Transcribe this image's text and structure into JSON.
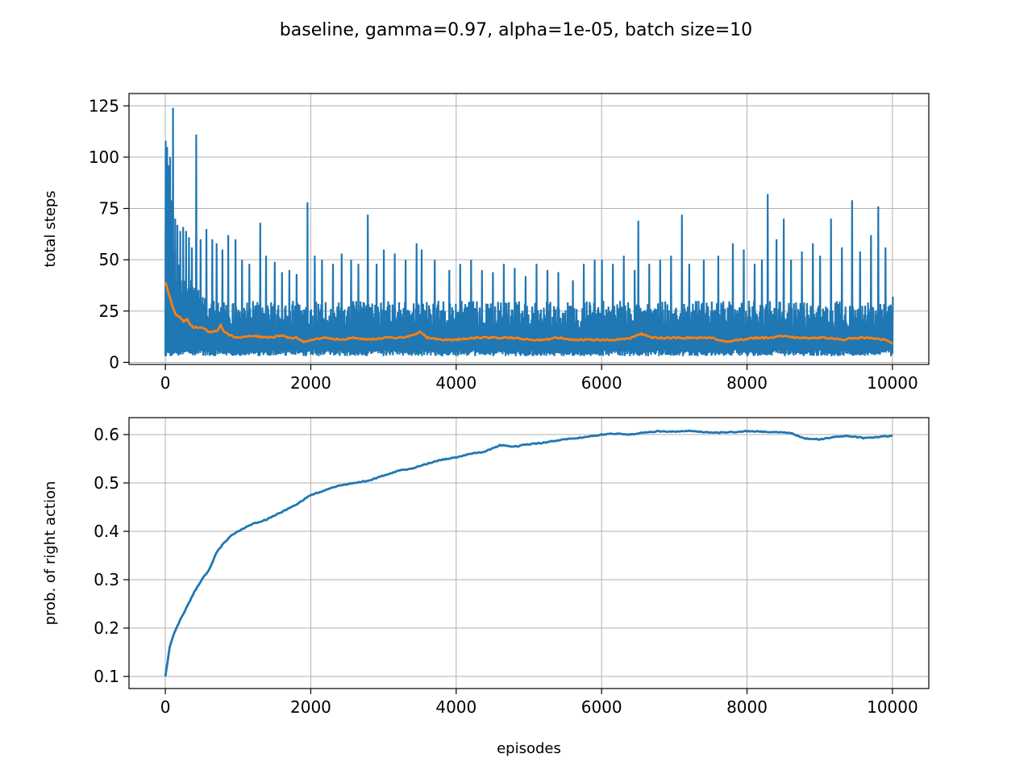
{
  "figure": {
    "suptitle": "baseline, gamma=0.97,  alpha=1e-05,  batch size=10"
  },
  "chart_data": [
    {
      "type": "line",
      "title": "",
      "xlabel": "",
      "ylabel": "total steps",
      "xlim": [
        -500,
        10500
      ],
      "ylim": [
        -1,
        131
      ],
      "xticks": [
        0,
        2000,
        4000,
        6000,
        8000,
        10000
      ],
      "xtick_labels": [
        "0",
        "2000",
        "4000",
        "6000",
        "8000",
        "10000"
      ],
      "yticks": [
        0,
        25,
        50,
        75,
        100,
        125
      ],
      "ytick_labels": [
        "0",
        "25",
        "50",
        "75",
        "100",
        "125"
      ],
      "grid": true,
      "series": [
        {
          "color": "#1f77b4",
          "description_range": [
            3,
            30
          ],
          "spikes": [
            [
              0,
              108
            ],
            [
              20,
              105
            ],
            [
              40,
              96
            ],
            [
              60,
              100
            ],
            [
              80,
              79
            ],
            [
              100,
              124
            ],
            [
              130,
              70
            ],
            [
              160,
              67
            ],
            [
              200,
              64
            ],
            [
              240,
              66
            ],
            [
              280,
              64
            ],
            [
              320,
              61
            ],
            [
              360,
              56
            ],
            [
              420,
              111
            ],
            [
              480,
              60
            ],
            [
              560,
              65
            ],
            [
              640,
              60
            ],
            [
              700,
              58
            ],
            [
              780,
              55
            ],
            [
              860,
              62
            ],
            [
              960,
              60
            ],
            [
              1050,
              50
            ],
            [
              1150,
              48
            ],
            [
              1300,
              68
            ],
            [
              1380,
              52
            ],
            [
              1500,
              49
            ],
            [
              1600,
              44
            ],
            [
              1700,
              45
            ],
            [
              1800,
              43
            ],
            [
              1950,
              78
            ],
            [
              2050,
              52
            ],
            [
              2150,
              50
            ],
            [
              2300,
              48
            ],
            [
              2420,
              53
            ],
            [
              2550,
              50
            ],
            [
              2650,
              48
            ],
            [
              2780,
              72
            ],
            [
              2900,
              48
            ],
            [
              3000,
              55
            ],
            [
              3150,
              53
            ],
            [
              3300,
              50
            ],
            [
              3450,
              58
            ],
            [
              3520,
              55
            ],
            [
              3700,
              50
            ],
            [
              3900,
              45
            ],
            [
              4050,
              48
            ],
            [
              4200,
              50
            ],
            [
              4350,
              45
            ],
            [
              4500,
              44
            ],
            [
              4650,
              48
            ],
            [
              4800,
              46
            ],
            [
              4950,
              42
            ],
            [
              5100,
              48
            ],
            [
              5250,
              45
            ],
            [
              5400,
              44
            ],
            [
              5600,
              40
            ],
            [
              5750,
              48
            ],
            [
              5900,
              50
            ],
            [
              6000,
              50
            ],
            [
              6150,
              48
            ],
            [
              6300,
              52
            ],
            [
              6450,
              45
            ],
            [
              6500,
              69
            ],
            [
              6650,
              48
            ],
            [
              6800,
              50
            ],
            [
              6950,
              52
            ],
            [
              7100,
              72
            ],
            [
              7200,
              48
            ],
            [
              7400,
              50
            ],
            [
              7600,
              52
            ],
            [
              7800,
              58
            ],
            [
              7950,
              55
            ],
            [
              8100,
              48
            ],
            [
              8200,
              50
            ],
            [
              8280,
              82
            ],
            [
              8400,
              60
            ],
            [
              8500,
              70
            ],
            [
              8600,
              50
            ],
            [
              8750,
              54
            ],
            [
              8900,
              58
            ],
            [
              9000,
              52
            ],
            [
              9150,
              70
            ],
            [
              9300,
              56
            ],
            [
              9440,
              79
            ],
            [
              9550,
              54
            ],
            [
              9700,
              62
            ],
            [
              9800,
              76
            ],
            [
              9900,
              56
            ],
            [
              10000,
              32
            ]
          ]
        },
        {
          "color": "#ff7f0e",
          "points": [
            [
              0,
              39
            ],
            [
              50,
              33
            ],
            [
              100,
              27
            ],
            [
              150,
              23
            ],
            [
              200,
              22
            ],
            [
              250,
              20
            ],
            [
              300,
              21
            ],
            [
              350,
              18
            ],
            [
              400,
              17
            ],
            [
              500,
              17
            ],
            [
              600,
              15
            ],
            [
              700,
              15
            ],
            [
              760,
              18
            ],
            [
              800,
              15
            ],
            [
              900,
              13
            ],
            [
              1000,
              12
            ],
            [
              1200,
              13
            ],
            [
              1400,
              12
            ],
            [
              1600,
              13
            ],
            [
              1700,
              12
            ],
            [
              1800,
              12
            ],
            [
              1900,
              10
            ],
            [
              2000,
              11
            ],
            [
              2200,
              12
            ],
            [
              2400,
              11
            ],
            [
              2600,
              12
            ],
            [
              2800,
              11
            ],
            [
              3000,
              12
            ],
            [
              3200,
              12
            ],
            [
              3400,
              13
            ],
            [
              3500,
              15
            ],
            [
              3600,
              12
            ],
            [
              3800,
              11
            ],
            [
              4000,
              11
            ],
            [
              4200,
              12
            ],
            [
              4400,
              12
            ],
            [
              4600,
              12
            ],
            [
              4800,
              12
            ],
            [
              5000,
              11
            ],
            [
              5200,
              11
            ],
            [
              5400,
              12
            ],
            [
              5600,
              11
            ],
            [
              5800,
              11
            ],
            [
              6000,
              11
            ],
            [
              6200,
              11
            ],
            [
              6400,
              12
            ],
            [
              6550,
              14
            ],
            [
              6700,
              12
            ],
            [
              6900,
              12
            ],
            [
              7100,
              12
            ],
            [
              7300,
              12
            ],
            [
              7500,
              12
            ],
            [
              7700,
              10
            ],
            [
              7900,
              11
            ],
            [
              8100,
              12
            ],
            [
              8300,
              12
            ],
            [
              8500,
              13
            ],
            [
              8700,
              12
            ],
            [
              8900,
              12
            ],
            [
              9100,
              12
            ],
            [
              9300,
              11
            ],
            [
              9500,
              12
            ],
            [
              9700,
              12
            ],
            [
              9900,
              11
            ],
            [
              10000,
              9
            ]
          ]
        }
      ]
    },
    {
      "type": "line",
      "title": "",
      "xlabel": "episodes",
      "ylabel": "prob. of right action",
      "xlim": [
        -500,
        10500
      ],
      "ylim": [
        0.075,
        0.635
      ],
      "xticks": [
        0,
        2000,
        4000,
        6000,
        8000,
        10000
      ],
      "xtick_labels": [
        "0",
        "2000",
        "4000",
        "6000",
        "8000",
        "10000"
      ],
      "yticks": [
        0.1,
        0.2,
        0.3,
        0.4,
        0.5,
        0.6
      ],
      "ytick_labels": [
        "0.1",
        "0.2",
        "0.3",
        "0.4",
        "0.5",
        "0.6"
      ],
      "grid": true,
      "series": [
        {
          "color": "#1f77b4",
          "points": [
            [
              0,
              0.1
            ],
            [
              30,
              0.13
            ],
            [
              60,
              0.16
            ],
            [
              100,
              0.18
            ],
            [
              150,
              0.2
            ],
            [
              200,
              0.215
            ],
            [
              300,
              0.245
            ],
            [
              400,
              0.275
            ],
            [
              500,
              0.3
            ],
            [
              600,
              0.32
            ],
            [
              700,
              0.355
            ],
            [
              800,
              0.375
            ],
            [
              900,
              0.39
            ],
            [
              1000,
              0.4
            ],
            [
              1200,
              0.415
            ],
            [
              1400,
              0.425
            ],
            [
              1600,
              0.44
            ],
            [
              1800,
              0.455
            ],
            [
              2000,
              0.475
            ],
            [
              2200,
              0.485
            ],
            [
              2400,
              0.495
            ],
            [
              2600,
              0.5
            ],
            [
              2800,
              0.505
            ],
            [
              3000,
              0.515
            ],
            [
              3200,
              0.525
            ],
            [
              3400,
              0.53
            ],
            [
              3600,
              0.54
            ],
            [
              3800,
              0.548
            ],
            [
              4000,
              0.553
            ],
            [
              4200,
              0.56
            ],
            [
              4400,
              0.565
            ],
            [
              4600,
              0.578
            ],
            [
              4800,
              0.575
            ],
            [
              5000,
              0.58
            ],
            [
              5200,
              0.583
            ],
            [
              5400,
              0.588
            ],
            [
              5600,
              0.592
            ],
            [
              5800,
              0.595
            ],
            [
              6000,
              0.6
            ],
            [
              6200,
              0.602
            ],
            [
              6400,
              0.6
            ],
            [
              6600,
              0.605
            ],
            [
              6800,
              0.607
            ],
            [
              7000,
              0.606
            ],
            [
              7200,
              0.608
            ],
            [
              7400,
              0.605
            ],
            [
              7600,
              0.604
            ],
            [
              7800,
              0.605
            ],
            [
              8000,
              0.607
            ],
            [
              8200,
              0.606
            ],
            [
              8400,
              0.605
            ],
            [
              8600,
              0.603
            ],
            [
              8800,
              0.592
            ],
            [
              9000,
              0.59
            ],
            [
              9200,
              0.595
            ],
            [
              9400,
              0.597
            ],
            [
              9600,
              0.593
            ],
            [
              9800,
              0.595
            ],
            [
              10000,
              0.597
            ]
          ]
        }
      ]
    }
  ]
}
